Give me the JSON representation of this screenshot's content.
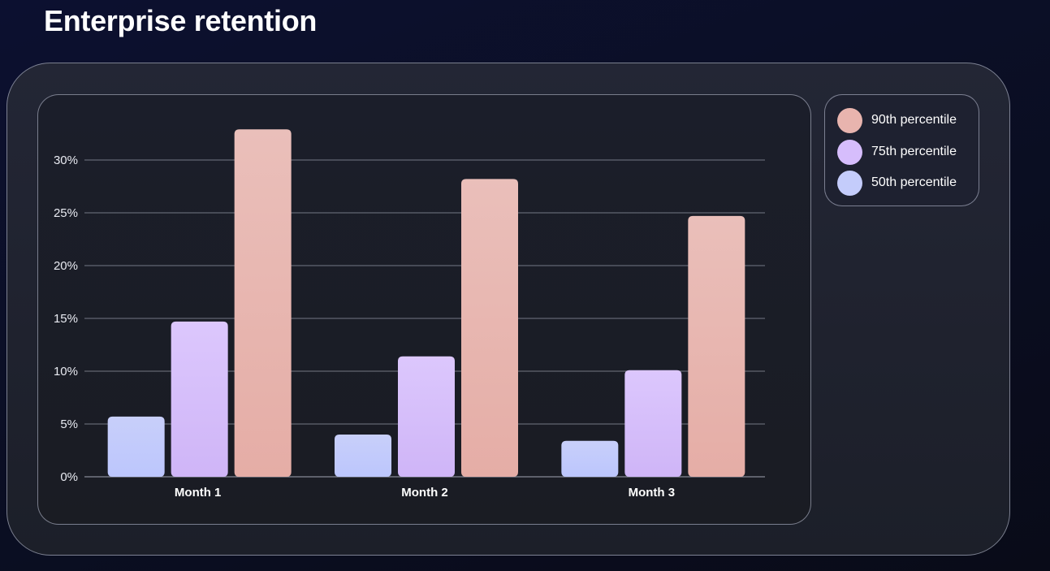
{
  "title": "Enterprise retention",
  "chart_data": {
    "type": "bar",
    "title": "Enterprise retention",
    "xlabel": "",
    "ylabel": "",
    "categories": [
      "Month 1",
      "Month 2",
      "Month 3"
    ],
    "ylim": [
      0,
      35
    ],
    "yticks": [
      0,
      5,
      10,
      15,
      20,
      25,
      30
    ],
    "ytick_labels": [
      "0%",
      "5%",
      "10%",
      "15%",
      "20%",
      "25%",
      "30%"
    ],
    "grid": true,
    "legend_position": "top-right",
    "series": [
      {
        "name": "50th percentile",
        "values": [
          5.7,
          4.0,
          3.4
        ],
        "color": "#c4ccfb",
        "color_top": "#c8cffa",
        "color_bottom": "#bcc6fd"
      },
      {
        "name": "75th percentile",
        "values": [
          14.7,
          11.4,
          10.1
        ],
        "color": "#d4bcfb",
        "color_top": "#dcc7fd",
        "color_bottom": "#cfb5f7"
      },
      {
        "name": "90th percentile",
        "values": [
          32.9,
          28.2,
          24.7
        ],
        "color": "#e6b1ab",
        "color_top": "#eabfba",
        "color_bottom": "#e5ada6"
      }
    ]
  },
  "legend": {
    "items": [
      {
        "label": "90th percentile",
        "color": "#e8b4ae"
      },
      {
        "label": "75th percentile",
        "color": "#d6bdfc"
      },
      {
        "label": "50th percentile",
        "color": "#c4ccfb"
      }
    ]
  }
}
